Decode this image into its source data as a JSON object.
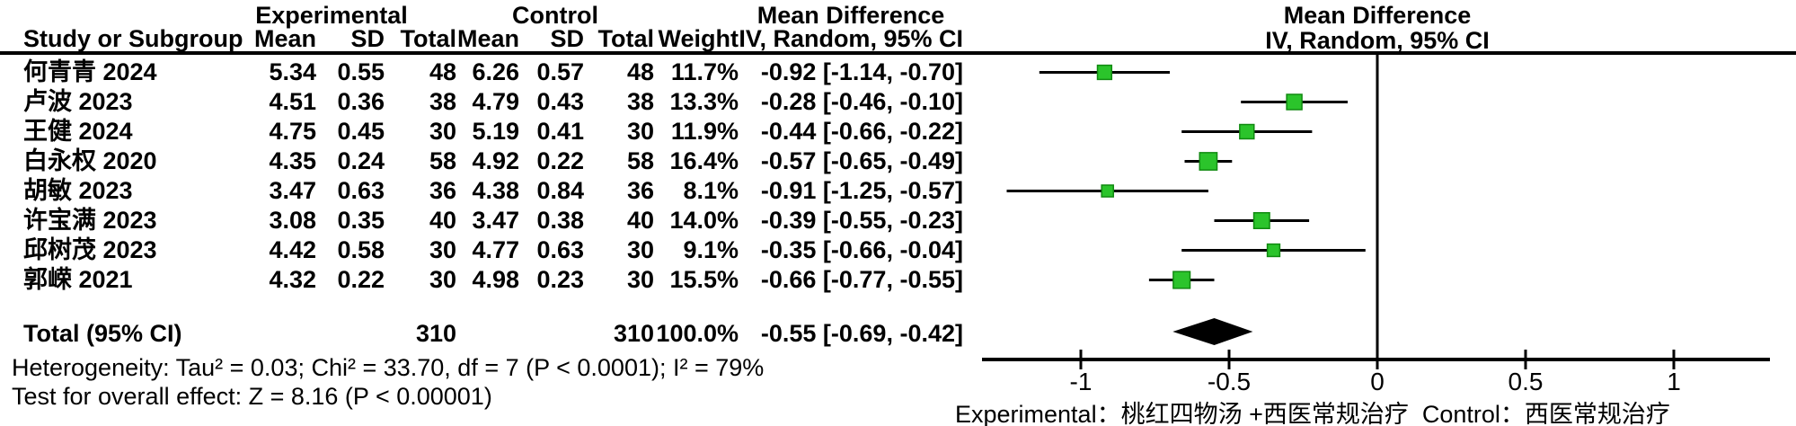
{
  "table": {
    "group_headers": {
      "experimental": "Experimental",
      "control": "Control",
      "mean_difference": "Mean Difference"
    },
    "column_headers": {
      "study": "Study or Subgroup",
      "mean": "Mean",
      "sd": "SD",
      "total": "Total",
      "mean2": "Mean",
      "sd2": "SD",
      "total2": "Total",
      "weight": "Weight",
      "ci": "IV, Random, 95% CI"
    },
    "rows": [
      {
        "study": "何青青 2024",
        "e_mean": "5.34",
        "e_sd": "0.55",
        "e_total": "48",
        "c_mean": "6.26",
        "c_sd": "0.57",
        "c_total": "48",
        "weight": "11.7%",
        "ci": "-0.92 [-1.14, -0.70]"
      },
      {
        "study": "卢波 2023",
        "e_mean": "4.51",
        "e_sd": "0.36",
        "e_total": "38",
        "c_mean": "4.79",
        "c_sd": "0.43",
        "c_total": "38",
        "weight": "13.3%",
        "ci": "-0.28 [-0.46, -0.10]"
      },
      {
        "study": "王健 2024",
        "e_mean": "4.75",
        "e_sd": "0.45",
        "e_total": "30",
        "c_mean": "5.19",
        "c_sd": "0.41",
        "c_total": "30",
        "weight": "11.9%",
        "ci": "-0.44 [-0.66, -0.22]"
      },
      {
        "study": "白永权 2020",
        "e_mean": "4.35",
        "e_sd": "0.24",
        "e_total": "58",
        "c_mean": "4.92",
        "c_sd": "0.22",
        "c_total": "58",
        "weight": "16.4%",
        "ci": "-0.57 [-0.65, -0.49]"
      },
      {
        "study": "胡敏 2023",
        "e_mean": "3.47",
        "e_sd": "0.63",
        "e_total": "36",
        "c_mean": "4.38",
        "c_sd": "0.84",
        "c_total": "36",
        "weight": "8.1%",
        "ci": "-0.91 [-1.25, -0.57]"
      },
      {
        "study": "许宝满 2023",
        "e_mean": "3.08",
        "e_sd": "0.35",
        "e_total": "40",
        "c_mean": "3.47",
        "c_sd": "0.38",
        "c_total": "40",
        "weight": "14.0%",
        "ci": "-0.39 [-0.55, -0.23]"
      },
      {
        "study": "邱树茂 2023",
        "e_mean": "4.42",
        "e_sd": "0.58",
        "e_total": "30",
        "c_mean": "4.77",
        "c_sd": "0.63",
        "c_total": "30",
        "weight": "9.1%",
        "ci": "-0.35 [-0.66, -0.04]"
      },
      {
        "study": "郭嵘 2021",
        "e_mean": "4.32",
        "e_sd": "0.22",
        "e_total": "30",
        "c_mean": "4.98",
        "c_sd": "0.23",
        "c_total": "30",
        "weight": "15.5%",
        "ci": "-0.66 [-0.77, -0.55]"
      }
    ],
    "total_row": {
      "label": "Total (95% CI)",
      "e_total": "310",
      "c_total": "310",
      "weight": "100.0%",
      "ci": "-0.55 [-0.69, -0.42]"
    },
    "heterogeneity": "Heterogeneity: Tau² = 0.03; Chi² = 33.70, df = 7 (P < 0.0001); I² = 79%",
    "overall_effect": "Test for overall effect: Z = 8.16 (P < 0.00001)"
  },
  "plot": {
    "header_line1": "Mean Difference",
    "header_line2": "IV, Random, 95% CI",
    "ticks": [
      {
        "v": -1,
        "label": "-1"
      },
      {
        "v": -0.5,
        "label": "-0.5"
      },
      {
        "v": 0,
        "label": "0"
      },
      {
        "v": 0.5,
        "label": "0.5"
      },
      {
        "v": 1,
        "label": "1"
      }
    ],
    "caption": "Experimental：桃红四物汤 +西医常规治疗  Control：西医常规治疗",
    "marker_color": "#2bc42b",
    "marker_edge_color": "#118a11",
    "line_color": "#000000",
    "diamond_color": "#000000"
  },
  "chart_data": {
    "type": "scatter",
    "subtype": "forest-plot-mean-difference",
    "title": "Mean Difference IV, Random, 95% CI",
    "xlabel": "Mean Difference",
    "xlim": [
      -1.35,
      1.3
    ],
    "x_ticks": [
      -1,
      -0.5,
      0,
      0.5,
      1
    ],
    "studies": [
      {
        "name": "何青青 2024",
        "md": -0.92,
        "ci_low": -1.14,
        "ci_high": -0.7,
        "weight_pct": 11.7
      },
      {
        "name": "卢波 2023",
        "md": -0.28,
        "ci_low": -0.46,
        "ci_high": -0.1,
        "weight_pct": 13.3
      },
      {
        "name": "王健 2024",
        "md": -0.44,
        "ci_low": -0.66,
        "ci_high": -0.22,
        "weight_pct": 11.9
      },
      {
        "name": "白永权 2020",
        "md": -0.57,
        "ci_low": -0.65,
        "ci_high": -0.49,
        "weight_pct": 16.4
      },
      {
        "name": "胡敏 2023",
        "md": -0.91,
        "ci_low": -1.25,
        "ci_high": -0.57,
        "weight_pct": 8.1
      },
      {
        "name": "许宝满 2023",
        "md": -0.39,
        "ci_low": -0.55,
        "ci_high": -0.23,
        "weight_pct": 14.0
      },
      {
        "name": "邱树茂 2023",
        "md": -0.35,
        "ci_low": -0.66,
        "ci_high": -0.04,
        "weight_pct": 9.1
      },
      {
        "name": "郭嵘 2021",
        "md": -0.66,
        "ci_low": -0.77,
        "ci_high": -0.55,
        "weight_pct": 15.5
      }
    ],
    "total": {
      "name": "Total (95% CI)",
      "md": -0.55,
      "ci_low": -0.69,
      "ci_high": -0.42,
      "weight_pct": 100.0
    },
    "heterogeneity": {
      "tau2": 0.03,
      "chi2": 33.7,
      "df": 7,
      "p": "< 0.0001",
      "i2_pct": 79
    },
    "overall_effect": {
      "z": 8.16,
      "p": "< 0.00001"
    },
    "legend_note": "Experimental：桃红四物汤 +西医常规治疗  Control：西医常规治疗"
  }
}
